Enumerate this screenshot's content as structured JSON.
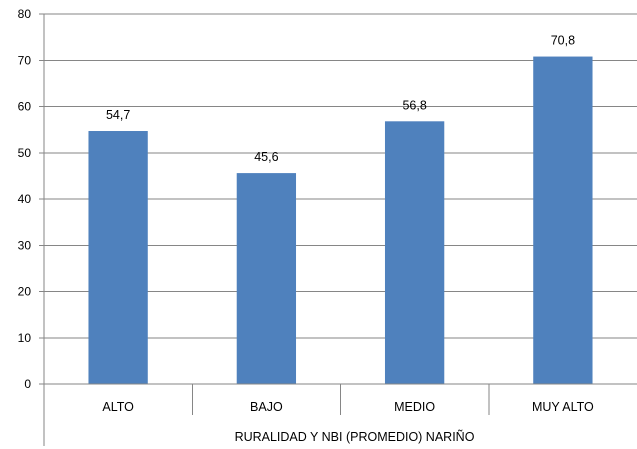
{
  "chart_data": {
    "type": "bar",
    "categories": [
      "ALTO",
      "BAJO",
      "MEDIO",
      "MUY ALTO"
    ],
    "series": [
      {
        "values": [
          54.7,
          45.6,
          56.8,
          70.8
        ]
      }
    ],
    "data_labels": [
      "54,7",
      "45,6",
      "56,8",
      "70,8"
    ],
    "xlabel": "RURALIDAD Y NBI (PROMEDIO) NARIÑO",
    "ylabel": "",
    "ylim": [
      0,
      80
    ],
    "yticks": [
      0,
      10,
      20,
      30,
      40,
      50,
      60,
      70,
      80
    ],
    "grid": true,
    "legend": "none",
    "bar_color": "#4F81BD",
    "grid_color": "#868686",
    "axis_color": "#868686"
  }
}
